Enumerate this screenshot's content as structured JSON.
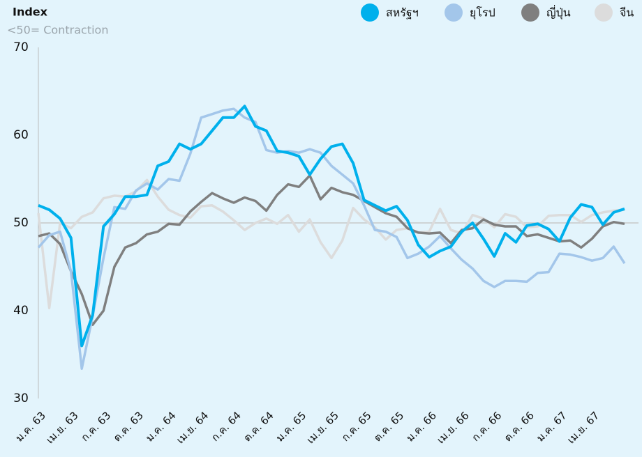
{
  "chart_data": {
    "type": "line",
    "title": "Index",
    "subtitle": "<50= Contraction",
    "categories": [
      "ม.ค. 63",
      null,
      null,
      "เม.ย. 63",
      null,
      null,
      "ก.ค. 63",
      null,
      null,
      "ต.ค. 63",
      null,
      null,
      "ม.ค. 64",
      null,
      null,
      "เม.ย. 64",
      null,
      null,
      "ก.ค. 64",
      null,
      null,
      "ต.ค. 64",
      null,
      null,
      "ม.ค. 65",
      null,
      null,
      "เม.ย. 65",
      null,
      null,
      "ก.ค. 65",
      null,
      null,
      "ต.ค. 65",
      null,
      null,
      "ม.ค. 66",
      null,
      null,
      "เม.ย. 66",
      null,
      null,
      "ก.ค. 66",
      null,
      null,
      "ต.ค. 66",
      null,
      null,
      "ม.ค. 67",
      null,
      null,
      "เม.ย. 67",
      null,
      null,
      null
    ],
    "series": [
      {
        "name": "สหรัฐฯ",
        "color": "#00b0ec",
        "values": [
          52,
          51.5,
          50.5,
          48.3,
          36,
          39.5,
          49.6,
          51,
          53,
          53,
          53.2,
          56.5,
          57,
          59,
          58.4,
          59,
          60.5,
          62,
          62,
          63.3,
          61,
          60.5,
          58.2,
          58,
          57.6,
          55.5,
          57.3,
          58.7,
          59,
          56.8,
          52.6,
          52,
          51.4,
          51.9,
          50.3,
          47.5,
          46.1,
          46.8,
          47.3,
          49,
          50,
          48.2,
          46.2,
          48.8,
          47.8,
          49.7,
          49.9,
          49.3,
          47.9,
          50.6,
          52.1,
          51.8,
          49.8,
          51.2,
          51.6
        ]
      },
      {
        "name": "ยุโรป",
        "color": "#a3c6ea",
        "values": [
          47.2,
          48.6,
          49,
          44.5,
          33.4,
          39.4,
          46,
          51.8,
          51.6,
          53.7,
          54.5,
          53.8,
          55,
          54.8,
          57.9,
          62,
          62.4,
          62.8,
          63,
          62,
          61.5,
          58.3,
          58,
          58.2,
          58,
          58.4,
          58,
          56.5,
          55.5,
          54.5,
          52,
          49.2,
          49,
          48.4,
          46,
          46.5,
          47.3,
          48.5,
          47.1,
          45.8,
          44.8,
          43.4,
          42.7,
          43.4,
          43.4,
          43.3,
          44.3,
          44.4,
          46.5,
          46.4,
          46.1,
          45.7,
          46,
          47.3,
          45.4
        ]
      },
      {
        "name": "ญี่ปุ่น",
        "color": "#7f7f7f",
        "values": [
          48.5,
          48.8,
          47.6,
          44.5,
          41.9,
          38.4,
          40,
          45,
          47.2,
          47.7,
          48.7,
          49,
          49.9,
          49.8,
          51.3,
          52.4,
          53.4,
          52.8,
          52.3,
          52.9,
          52.5,
          51.4,
          53.2,
          54.4,
          54.1,
          55.4,
          52.7,
          54,
          53.5,
          53.2,
          52.5,
          51.8,
          51.1,
          50.7,
          49.4,
          48.9,
          48.8,
          48.9,
          47.7,
          49.2,
          49.4,
          50.4,
          49.8,
          49.6,
          49.6,
          48.5,
          48.7,
          48.3,
          47.9,
          48,
          47.2,
          48.2,
          49.6,
          50.1,
          49.9
        ]
      },
      {
        "name": "จีน",
        "color": "#dcdcdc",
        "values": [
          51.1,
          40.3,
          50,
          49.4,
          50.7,
          51.2,
          52.8,
          53.1,
          53,
          53.6,
          54.9,
          53,
          51.5,
          50.9,
          50.6,
          51.9,
          52,
          51.3,
          50.3,
          49.2,
          50,
          50.5,
          49.9,
          50.9,
          49,
          50.4,
          47.8,
          46,
          48,
          51.7,
          50.4,
          49.5,
          48.1,
          49.2,
          49.4,
          48.9,
          49,
          51.6,
          49.2,
          48.8,
          50.9,
          50.5,
          49.5,
          51,
          50.7,
          49.5,
          49.6,
          50.8,
          50.9,
          50.9,
          50.1,
          50.9,
          51.2,
          51.4,
          51.5
        ]
      }
    ],
    "ylim": [
      30,
      70
    ],
    "yticks": [
      30,
      40,
      50,
      60,
      70
    ],
    "reference_line": 50,
    "grid": false,
    "legend": "top-right"
  }
}
